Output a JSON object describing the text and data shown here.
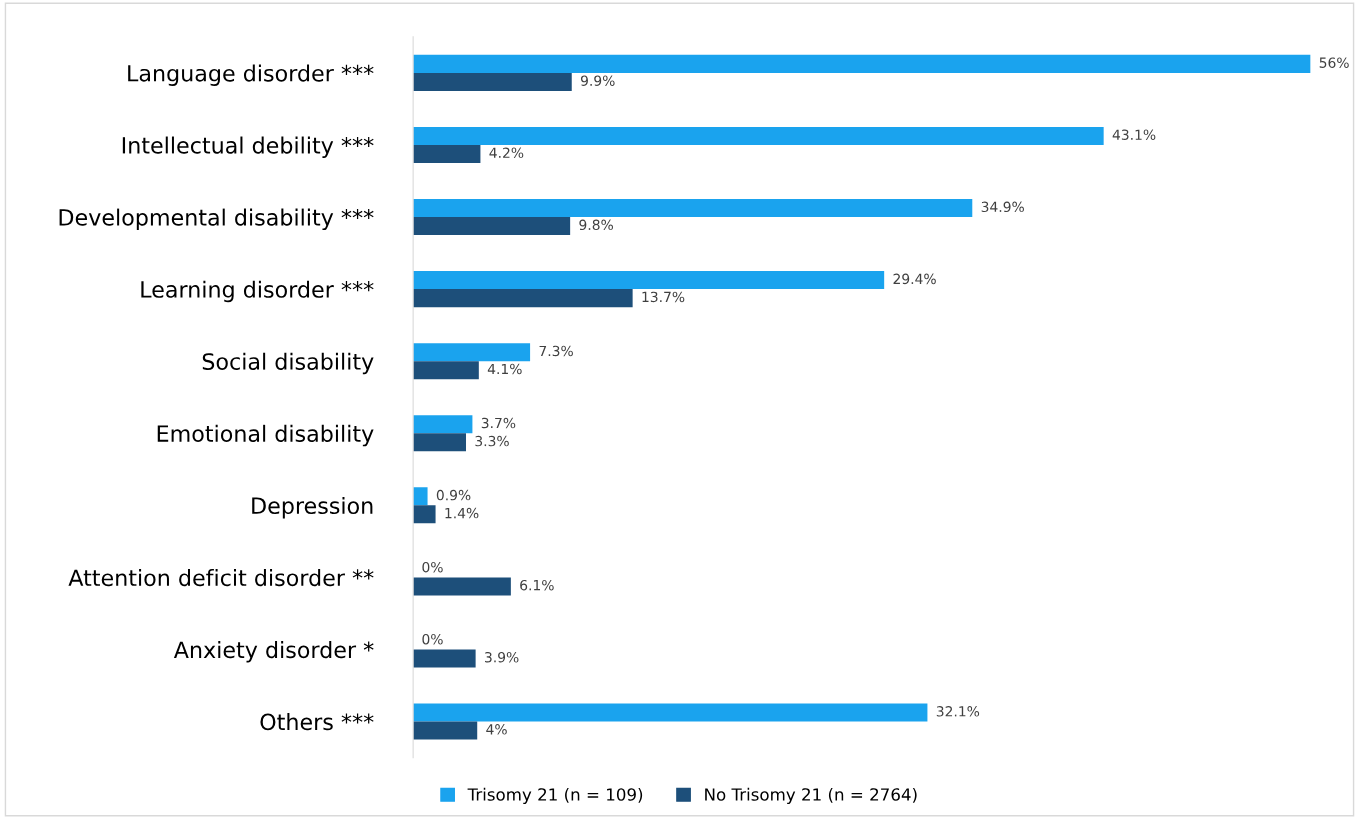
{
  "chart_data": {
    "type": "bar",
    "orientation": "horizontal",
    "categories": [
      "Language disorder ***",
      "Intellectual debility ***",
      "Developmental disability ***",
      "Learning disorder ***",
      "Social disability",
      "Emotional disability",
      "Depression",
      "Attention deficit disorder **",
      "Anxiety disorder *",
      "Others ***"
    ],
    "series": [
      {
        "name": "Trisomy 21 (n = 109)",
        "color": "#1aa3ee",
        "values": [
          56,
          43.1,
          34.9,
          29.4,
          7.3,
          3.7,
          0.9,
          0,
          0,
          32.1
        ],
        "value_labels": [
          "56%",
          "43.1%",
          "34.9%",
          "29.4%",
          "7.3%",
          "3.7%",
          "0.9%",
          "0%",
          "0%",
          "32.1%"
        ]
      },
      {
        "name": "No Trisomy 21 (n = 2764)",
        "color": "#1d4f7a",
        "values": [
          9.9,
          4.2,
          9.8,
          13.7,
          4.1,
          3.3,
          1.4,
          6.1,
          3.9,
          4
        ],
        "value_labels": [
          "9.9%",
          "4.2%",
          "9.8%",
          "13.7%",
          "4.1%",
          "3.3%",
          "1.4%",
          "6.1%",
          "3.9%",
          "4%"
        ]
      }
    ],
    "legend": "bottom",
    "grid": false,
    "tick_labels": "y"
  }
}
